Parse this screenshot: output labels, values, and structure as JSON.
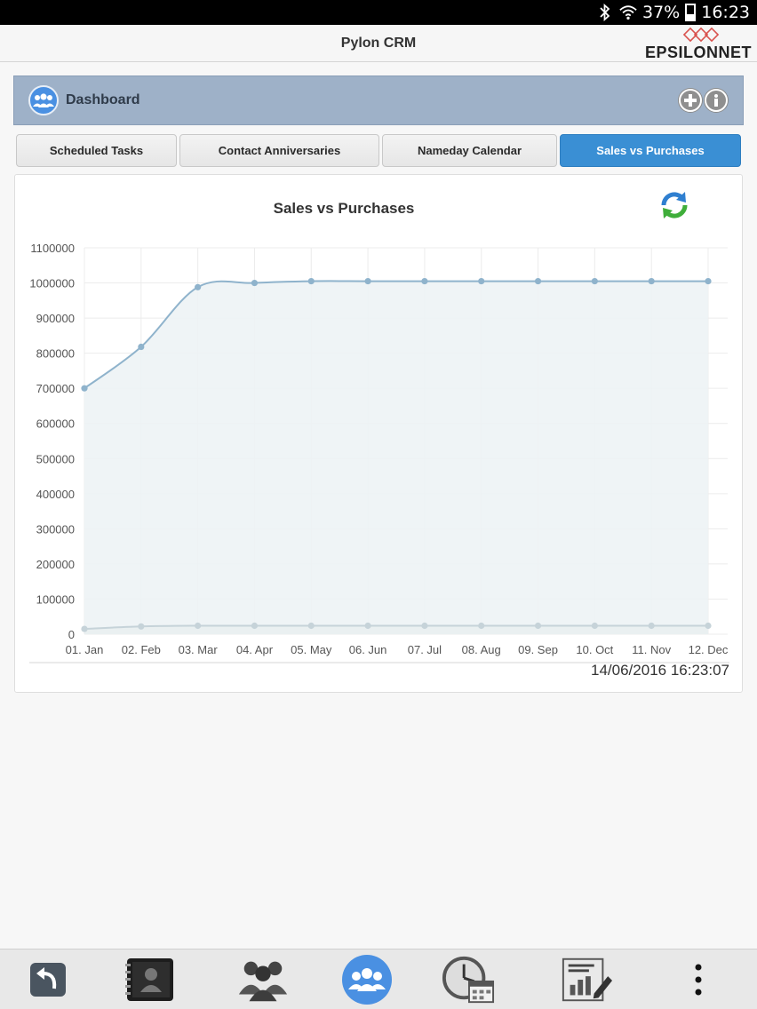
{
  "status_bar": {
    "battery": "37%",
    "time": "16:23"
  },
  "app": {
    "title": "Pylon CRM",
    "logo_text": "EPSILONNET"
  },
  "dashboard": {
    "label": "Dashboard"
  },
  "tabs": [
    {
      "label": "Scheduled Tasks",
      "active": false
    },
    {
      "label": "Contact Anniversaries",
      "active": false
    },
    {
      "label": "Nameday Calendar",
      "active": false
    },
    {
      "label": "Sales vs Purchases",
      "active": true
    }
  ],
  "chart_data": {
    "type": "area",
    "title": "Sales vs Purchases",
    "categories": [
      "01. Jan",
      "02. Feb",
      "03. Mar",
      "04. Apr",
      "05. May",
      "06. Jun",
      "07. Jul",
      "08. Aug",
      "09. Sep",
      "10. Oct",
      "11. Nov",
      "12. Dec"
    ],
    "series": [
      {
        "values": [
          700000,
          818000,
          988000,
          1000000,
          1005000,
          1005000,
          1005000,
          1005000,
          1005000,
          1005000,
          1005000,
          1005000
        ],
        "color": "#8fb3cc"
      },
      {
        "values": [
          15000,
          22000,
          24000,
          24000,
          24000,
          24000,
          24000,
          24000,
          24000,
          24000,
          24000,
          24000
        ],
        "color": "#c6d3d9"
      }
    ],
    "ylim": [
      0,
      1100000
    ],
    "yticks": [
      "1100000",
      "1000000",
      "900000",
      "800000",
      "700000",
      "600000",
      "500000",
      "400000",
      "300000",
      "200000",
      "100000",
      "0"
    ],
    "grid": true,
    "timestamp": "14/06/2016 16:23:07"
  },
  "colors": {
    "accent": "#3a8fd4",
    "dashboard_bar": "#9eb1c8",
    "area_fill": "#edf3f5"
  },
  "bottom_nav": [
    "back-icon",
    "contacts-book-icon",
    "people-group-icon",
    "dashboard-icon",
    "clock-calendar-icon",
    "report-edit-icon",
    "more-vert-icon"
  ]
}
